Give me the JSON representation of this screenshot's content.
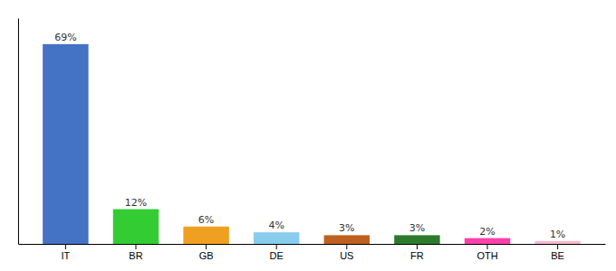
{
  "chart_data": {
    "type": "bar",
    "categories": [
      "IT",
      "BR",
      "GB",
      "DE",
      "US",
      "FR",
      "OTH",
      "BE"
    ],
    "values": [
      69,
      12,
      6,
      4,
      3,
      3,
      2,
      1
    ],
    "value_labels": [
      "69%",
      "12%",
      "6%",
      "4%",
      "3%",
      "3%",
      "2%",
      "1%"
    ],
    "colors": [
      "#4472c4",
      "#33cc33",
      "#f0a020",
      "#88ccee",
      "#c06020",
      "#2d7a2d",
      "#ff40aa",
      "#f8b8cc"
    ],
    "ylim": [
      0,
      78
    ],
    "data_labels": true,
    "tick_labels": "x",
    "grid": false
  }
}
